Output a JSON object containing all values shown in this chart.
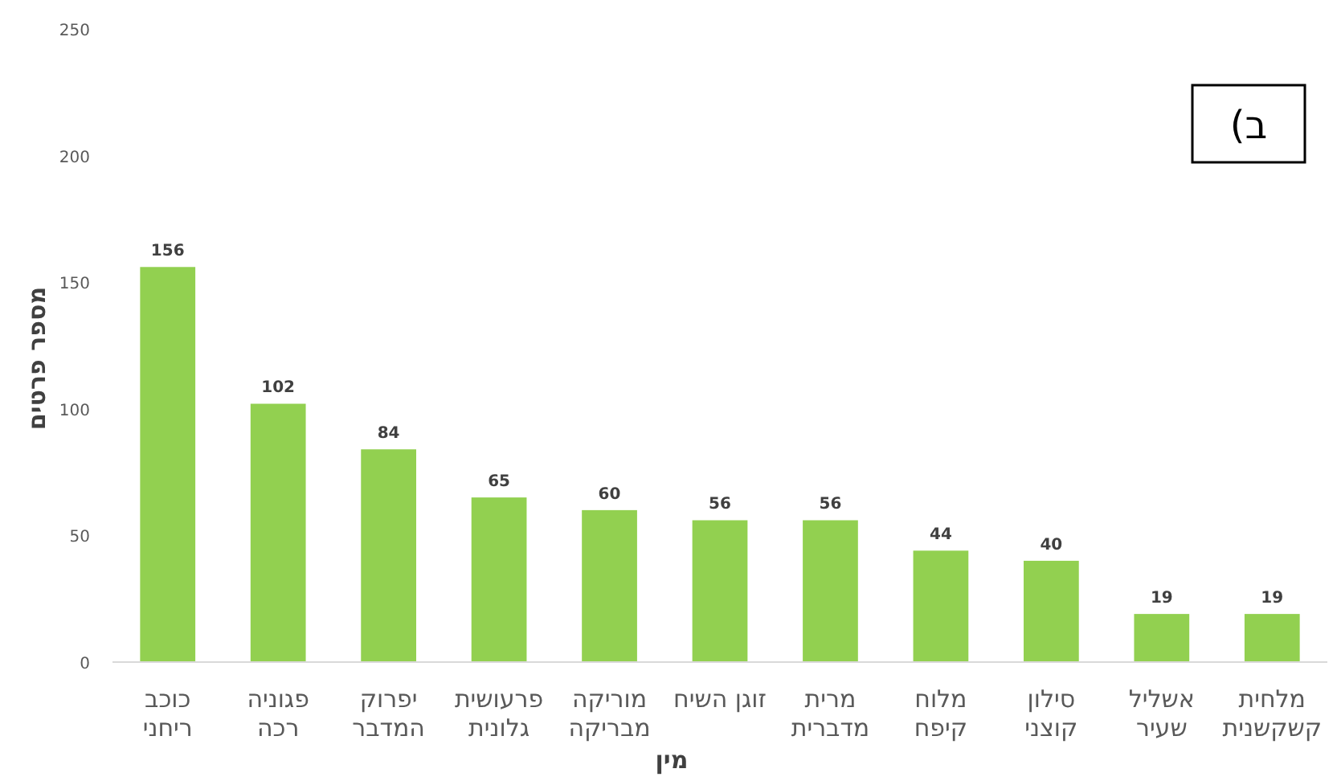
{
  "chart_data": {
    "type": "bar",
    "xlabel": "מין",
    "ylabel": "מספר פרטים",
    "annotations": [
      "ב)"
    ],
    "categories": [
      "כוכב\nריחני",
      "פגוניה\nרכה",
      "יפרוק\nהמדבר",
      "פרעושית\nגלונית",
      "מוריקה\nמבריקה",
      "זוגן השיח",
      "מרית\nמדברית",
      "מלוח\nקיפח",
      "סילון\nקוצני",
      "אשליל\nשעיר",
      "מלחית\nקשקשנית"
    ],
    "values": [
      156,
      102,
      84,
      65,
      60,
      56,
      56,
      44,
      40,
      19,
      19
    ],
    "color": "#92d050",
    "data_labels": true,
    "ylim": [
      0,
      250
    ],
    "yticks": [
      0,
      50,
      100,
      150,
      200,
      250
    ],
    "grid": false
  }
}
